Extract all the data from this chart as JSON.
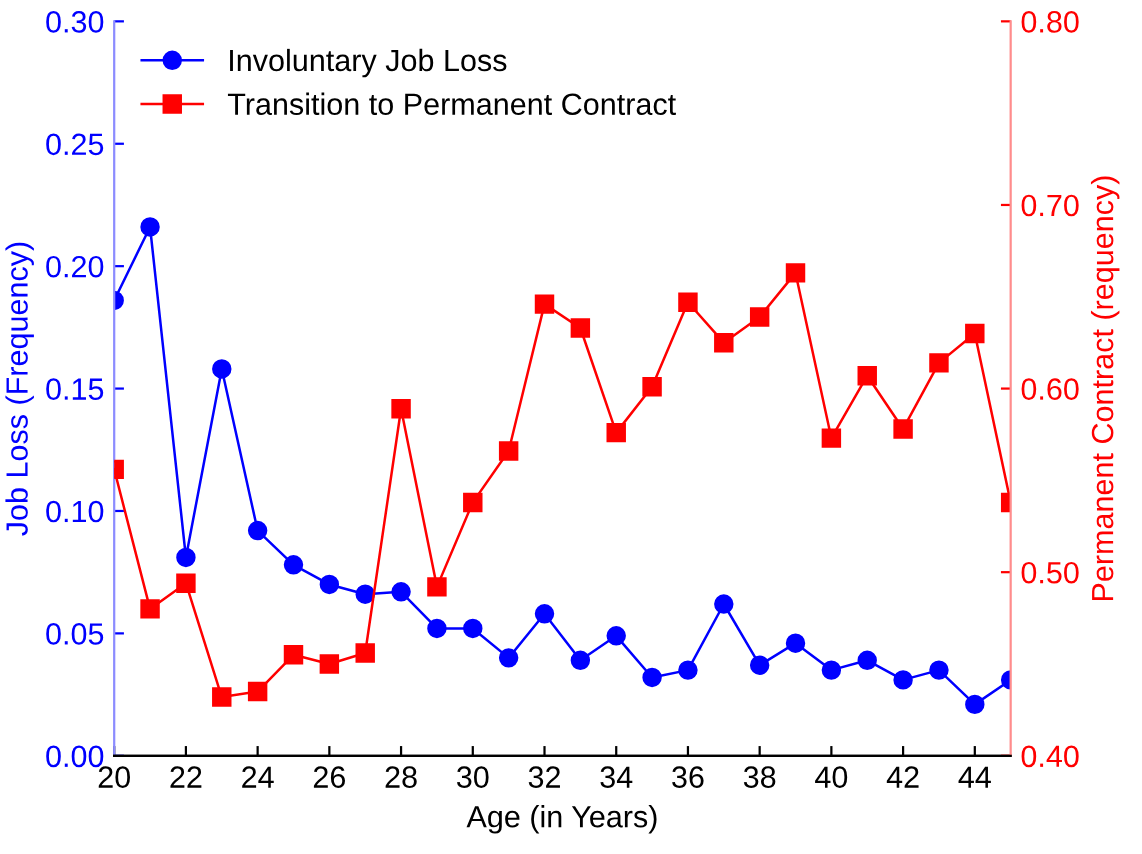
{
  "chart_data": {
    "type": "line",
    "xlabel": "Age (in Years)",
    "ylabel": "Job Loss (Frequency)",
    "y2label": "Permanent Contract (requency)",
    "x": [
      20,
      21,
      22,
      23,
      24,
      25,
      26,
      27,
      28,
      29,
      30,
      31,
      32,
      33,
      34,
      35,
      36,
      37,
      38,
      39,
      40,
      41,
      42,
      43,
      44,
      45
    ],
    "series": [
      {
        "name": "Involuntary Job Loss",
        "color": "#0000ff",
        "marker": "circle",
        "values": [
          0.186,
          0.216,
          0.081,
          0.158,
          0.092,
          0.078,
          0.07,
          0.066,
          0.067,
          0.052,
          0.052,
          0.04,
          0.058,
          0.039,
          0.049,
          0.032,
          0.035,
          0.062,
          0.037,
          0.046,
          0.035,
          0.039,
          0.031,
          0.035,
          0.021,
          0.031
        ]
      },
      {
        "name": "Transition to Permanent Contract",
        "color": "#ff0000",
        "marker": "square",
        "axis": "y2",
        "values": [
          0.556,
          0.48,
          0.494,
          0.432,
          0.435,
          0.455,
          0.45,
          0.456,
          0.589,
          0.492,
          0.538,
          0.566,
          0.646,
          0.633,
          0.576,
          0.601,
          0.647,
          0.625,
          0.639,
          0.663,
          0.573,
          0.607,
          0.578,
          0.614,
          0.63,
          0.538
        ]
      }
    ],
    "xlim": [
      20,
      45
    ],
    "xticks": [
      20,
      22,
      24,
      26,
      28,
      30,
      32,
      34,
      36,
      38,
      40,
      42,
      44
    ],
    "ylim": [
      0,
      0.3
    ],
    "yticks": [
      {
        "value": 0,
        "label": "0.00"
      },
      {
        "value": 0.05,
        "label": "0.05"
      },
      {
        "value": 0.1,
        "label": "0.10"
      },
      {
        "value": 0.15,
        "label": "0.15"
      },
      {
        "value": 0.2,
        "label": "0.20"
      },
      {
        "value": 0.25,
        "label": "0.25"
      },
      {
        "value": 0.3,
        "label": "0.30"
      }
    ],
    "y2lim": [
      0.4,
      0.8
    ],
    "y2ticks": [
      {
        "value": 0.4,
        "label": "0.40"
      },
      {
        "value": 0.5,
        "label": "0.50"
      },
      {
        "value": 0.6,
        "label": "0.60"
      },
      {
        "value": 0.7,
        "label": "0.70"
      },
      {
        "value": 0.8,
        "label": "0.80"
      }
    ],
    "legend": "top left",
    "grid": false,
    "line_style": "solid"
  }
}
